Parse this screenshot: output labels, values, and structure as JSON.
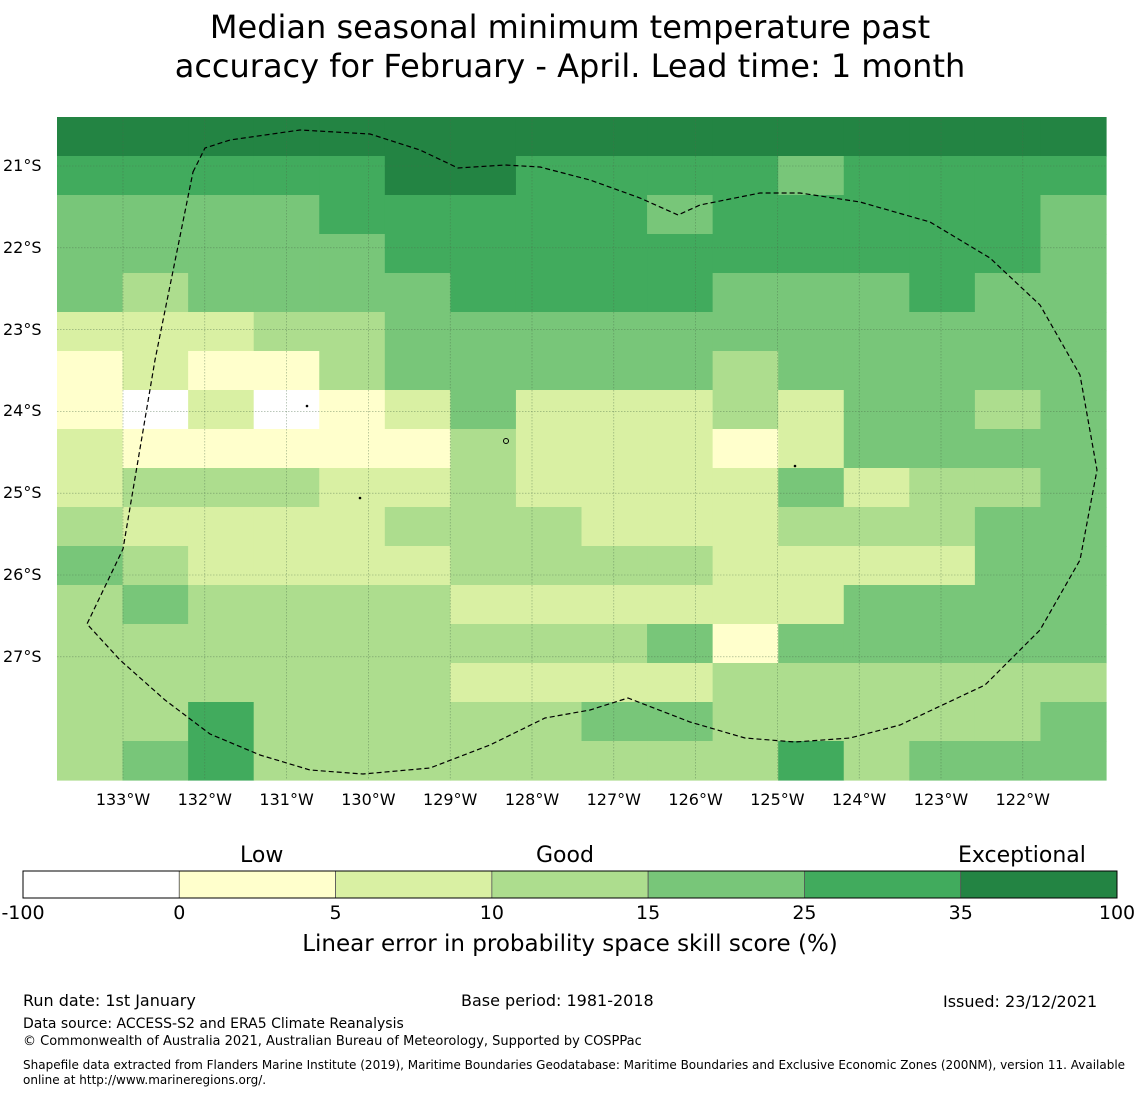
{
  "title": {
    "line1": "Median seasonal minimum temperature past",
    "line2": "accuracy for February - April. Lead time: 1 month"
  },
  "map": {
    "lat_labels": [
      "21°S",
      "22°S",
      "23°S",
      "24°S",
      "25°S",
      "26°S",
      "27°S"
    ],
    "lon_labels": [
      "133°W",
      "132°W",
      "131°W",
      "130°W",
      "129°W",
      "128°W",
      "127°W",
      "126°W",
      "125°W",
      "124°W",
      "123°W",
      "122°W"
    ],
    "grid_levels": [
      "6666666666666666",
      "5555566555545555",
      "4444555554555554",
      "4444455555555554",
      "4344445555444544",
      "2223344444444444",
      "1211344444344444",
      "1020124222324434",
      "2111113222124444",
      "2333223222242334",
      "3222233322233344",
      "4322223333222244",
      "3433332222224444",
      "3333333334144444",
      "3333332222333333",
      "3353333344333334",
      "3453333333353444"
    ]
  },
  "legend": {
    "categories": [
      "Low",
      "Good",
      "Exceptional"
    ],
    "ticks": [
      "-100",
      "0",
      "5",
      "10",
      "15",
      "25",
      "35",
      "100"
    ],
    "colors": [
      "#ffffff",
      "#ffffcc",
      "#d9f0a3",
      "#addd8e",
      "#78c679",
      "#41ab5d",
      "#238443"
    ],
    "label": "Linear error in probability space skill score (%)"
  },
  "footer": {
    "run_date": "Run date: 1st January",
    "base_period": "Base period: 1981-2018",
    "issued": "Issued: 23/12/2021",
    "data_source": "Data source: ACCESS-S2 and ERA5 Climate Reanalysis",
    "copyright": "© Commonwealth of Australia 2021, Australian Bureau of Meteorology, Supported by COSPPac",
    "shapefile": "Shapefile data extracted from Flanders Marine Institute (2019), Maritime Boundaries Geodatabase: Maritime Boundaries and Exclusive Economic Zones (200NM), version 11. Available online at http://www.marineregions.org/."
  }
}
